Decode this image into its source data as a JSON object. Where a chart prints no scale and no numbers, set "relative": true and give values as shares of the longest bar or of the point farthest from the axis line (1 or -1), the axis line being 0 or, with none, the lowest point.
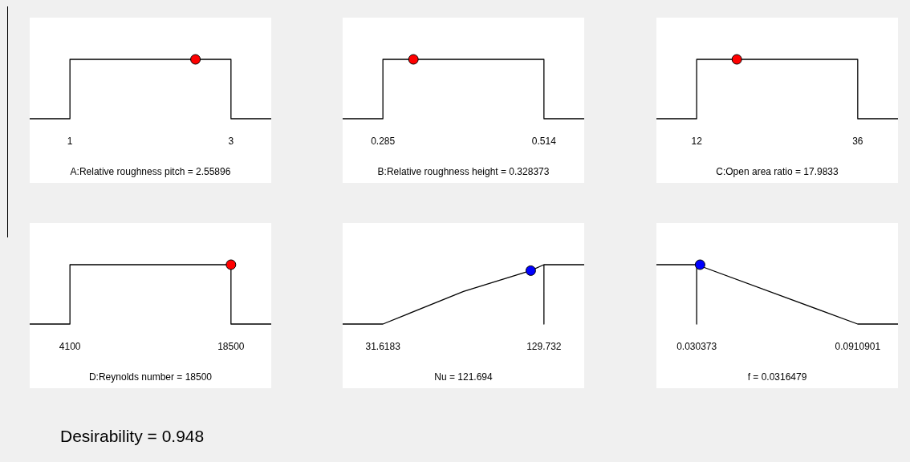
{
  "chart_data": [
    {
      "type": "line",
      "xlabel": "A:Relative roughness pitch = 2.55896",
      "relative": true,
      "xlim": [
        0.5,
        3.5
      ],
      "xticks": [
        1,
        3
      ],
      "grid": false,
      "legend": false,
      "tick_labels": "x",
      "series": [
        {
          "type": "line",
          "color": "#000000",
          "marker": "none",
          "x": [
            0.5,
            1,
            1,
            3,
            3,
            3.5
          ],
          "values": [
            0,
            0,
            1,
            1,
            0,
            0
          ]
        },
        {
          "type": "scatter",
          "color": "#ff0000",
          "marker": "circle",
          "x": [
            2.55896
          ],
          "values": [
            1
          ]
        }
      ]
    },
    {
      "type": "line",
      "xlabel": "B:Relative roughness height = 0.328373",
      "relative": true,
      "xlim": [
        0.22775,
        0.57125
      ],
      "xticks": [
        0.285,
        0.514
      ],
      "grid": false,
      "legend": false,
      "tick_labels": "x",
      "series": [
        {
          "type": "line",
          "color": "#000000",
          "marker": "none",
          "x": [
            0.22775,
            0.285,
            0.285,
            0.514,
            0.514,
            0.57125
          ],
          "values": [
            0,
            0,
            1,
            1,
            0,
            0
          ]
        },
        {
          "type": "scatter",
          "color": "#ff0000",
          "marker": "circle",
          "x": [
            0.328373
          ],
          "values": [
            1
          ]
        }
      ]
    },
    {
      "type": "line",
      "xlabel": "C:Open area ratio = 17.9833",
      "relative": true,
      "xlim": [
        6,
        42
      ],
      "xticks": [
        12,
        36
      ],
      "grid": false,
      "legend": false,
      "tick_labels": "x",
      "series": [
        {
          "type": "line",
          "color": "#000000",
          "marker": "none",
          "x": [
            6,
            12,
            12,
            36,
            36,
            42
          ],
          "values": [
            0,
            0,
            1,
            1,
            0,
            0
          ]
        },
        {
          "type": "scatter",
          "color": "#ff0000",
          "marker": "circle",
          "x": [
            17.9833
          ],
          "values": [
            1
          ]
        }
      ]
    },
    {
      "type": "line",
      "xlabel": "D:Reynolds number = 18500",
      "relative": true,
      "xlim": [
        500,
        22100
      ],
      "xticks": [
        4100,
        18500
      ],
      "grid": false,
      "legend": false,
      "tick_labels": "x",
      "series": [
        {
          "type": "line",
          "color": "#000000",
          "marker": "none",
          "x": [
            500,
            4100,
            4100,
            18500,
            18500,
            22100
          ],
          "values": [
            0,
            0,
            1,
            1,
            0,
            0
          ]
        },
        {
          "type": "scatter",
          "color": "#ff0000",
          "marker": "circle",
          "x": [
            18500
          ],
          "values": [
            1
          ]
        }
      ]
    },
    {
      "type": "line",
      "xlabel": "Nu = 121.694",
      "relative": true,
      "xlim": [
        7.09,
        154.26
      ],
      "xticks": [
        31.6183,
        129.732
      ],
      "grid": false,
      "legend": false,
      "tick_labels": "x",
      "series": [
        {
          "type": "line",
          "color": "#000000",
          "marker": "none",
          "x": [
            7.09,
            31.6183,
            80.7,
            121.694,
            129.732,
            129.732,
            129.732,
            154.26
          ],
          "values": [
            0,
            0,
            0.55,
            0.9,
            1,
            0,
            1,
            1
          ]
        },
        {
          "type": "scatter",
          "color": "#0000ff",
          "marker": "circle",
          "x": [
            121.694
          ],
          "values": [
            0.9
          ]
        }
      ]
    },
    {
      "type": "line",
      "xlabel": "f = 0.0316479",
      "relative": true,
      "xlim": [
        0.01519,
        0.10627
      ],
      "xticks": [
        0.030373,
        0.0910901
      ],
      "grid": false,
      "legend": false,
      "tick_labels": "x",
      "series": [
        {
          "type": "line",
          "color": "#000000",
          "marker": "none",
          "x": [
            0.01519,
            0.030373,
            0.030373,
            0.030373,
            0.0910901,
            0.10627
          ],
          "values": [
            1,
            1,
            0,
            1,
            0,
            0
          ]
        },
        {
          "type": "scatter",
          "color": "#0000ff",
          "marker": "circle",
          "x": [
            0.0316479
          ],
          "values": [
            1
          ]
        }
      ]
    },
    {
      "type": "other",
      "title": "Desirability = 0.948"
    }
  ]
}
